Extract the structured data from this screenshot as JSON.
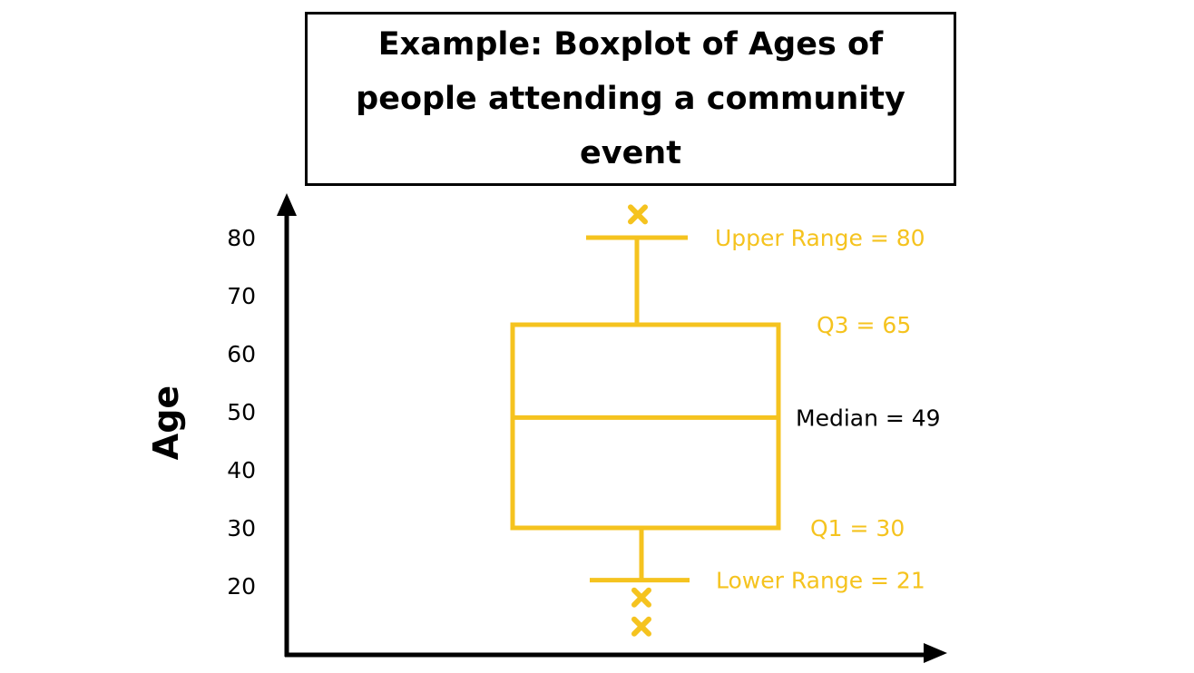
{
  "chart_data": {
    "type": "boxplot",
    "title": "Example: Boxplot of Ages of people attending a community event",
    "ylabel": "Age",
    "xlabel": "",
    "ylim": [
      16,
      86
    ],
    "yticks": [
      20,
      30,
      40,
      50,
      60,
      70,
      80
    ],
    "box": {
      "lower_whisker": 21,
      "q1": 30,
      "median": 49,
      "q3": 65,
      "upper_whisker": 80
    },
    "outliers": [
      84,
      18,
      13
    ],
    "annotations": [
      {
        "text": "Upper Range = 80",
        "value": 80,
        "color": "#f5c31f"
      },
      {
        "text": "Q3 = 65",
        "value": 65,
        "color": "#f5c31f"
      },
      {
        "text": "Median = 49",
        "value": 49,
        "color": "#000000"
      },
      {
        "text": "Q1 = 30",
        "value": 30,
        "color": "#f5c31f"
      },
      {
        "text": "Lower Range = 21",
        "value": 21,
        "color": "#f5c31f"
      }
    ],
    "colors": {
      "box": "#f5c31f",
      "axis": "#000000"
    }
  }
}
